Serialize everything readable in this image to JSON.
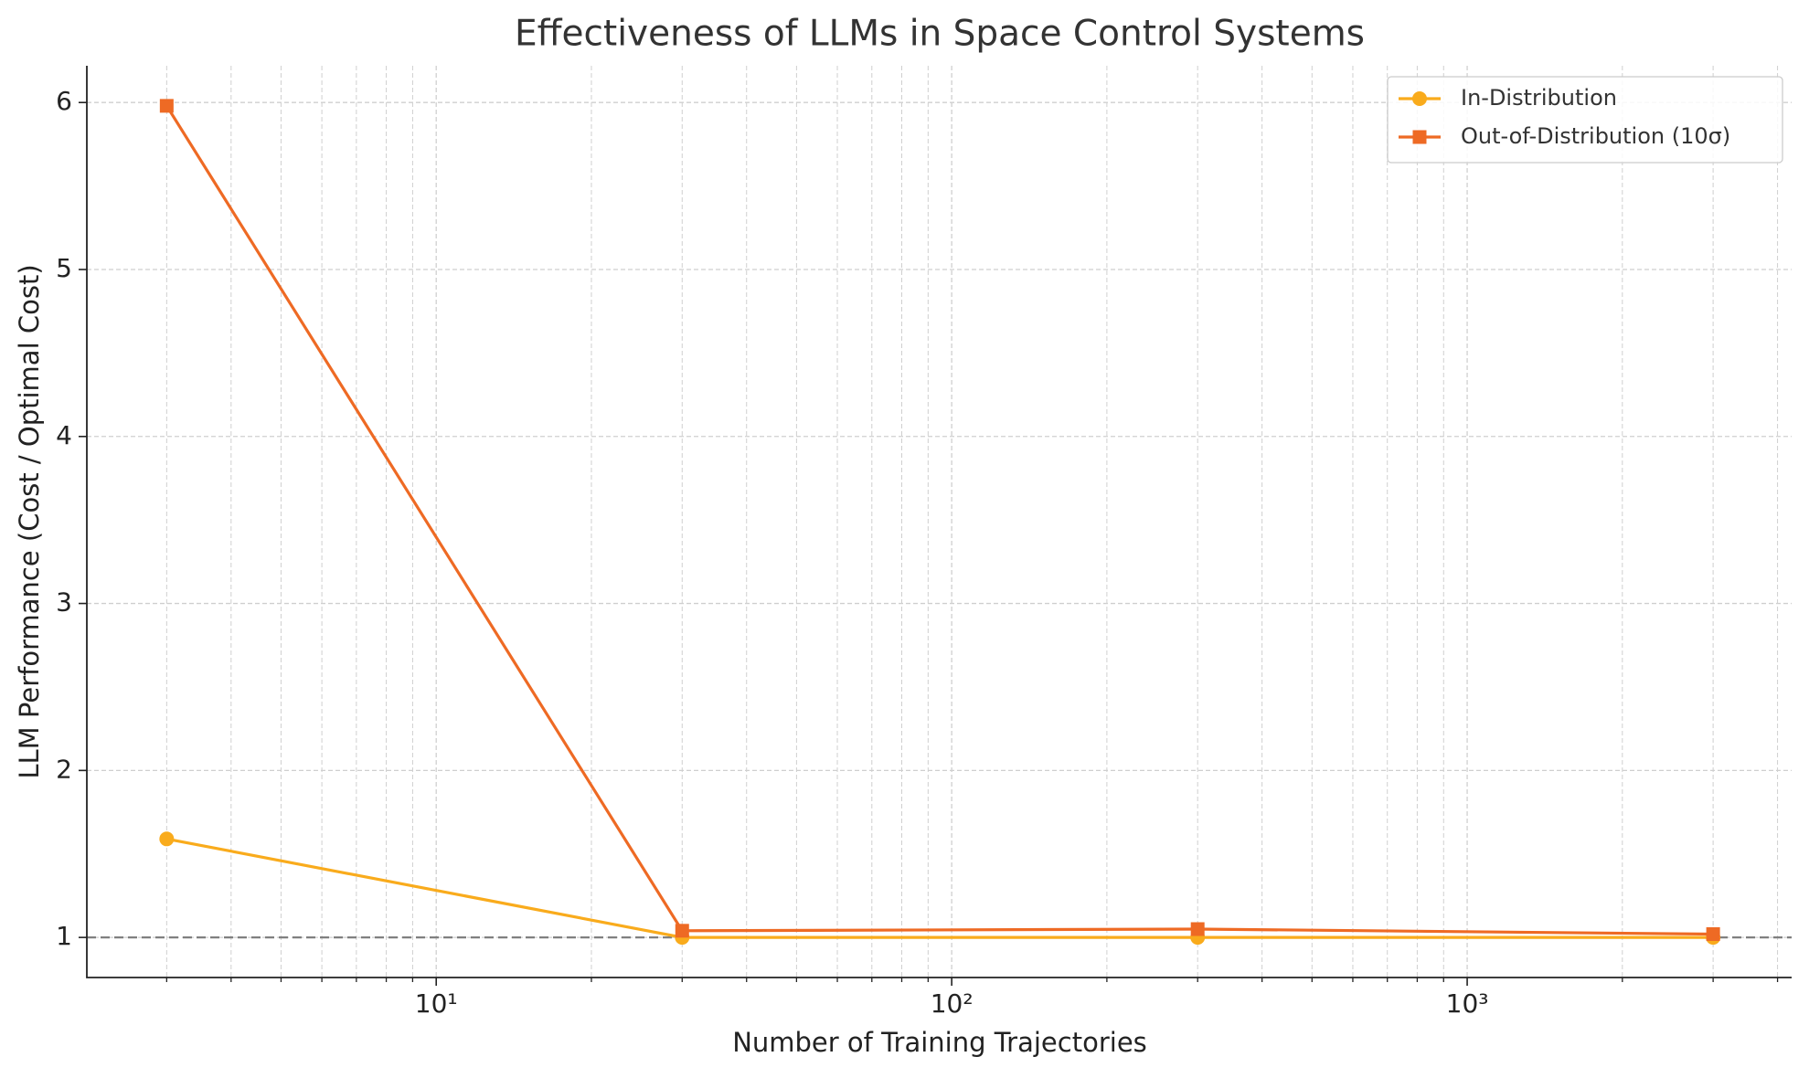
{
  "chart_data": {
    "type": "line",
    "title": "Effectiveness of LLMs in Space Control Systems",
    "x_label": "Number of Training Trajectories",
    "y_label": "LLM Performance (Cost / Optimal Cost)",
    "x": [
      3,
      30,
      300,
      3000
    ],
    "x_scale": "log",
    "series": [
      {
        "name": "In-Distribution",
        "color": "#f9ab1c",
        "marker": "circle",
        "values": [
          1.59,
          1.0,
          1.0,
          1.0
        ]
      },
      {
        "name": "Out-of-Distribution (10σ)",
        "color": "#ee6a24",
        "marker": "square",
        "values": [
          5.98,
          1.04,
          1.05,
          1.02
        ]
      }
    ],
    "reference_line": {
      "value": 1,
      "color": "#808080"
    },
    "xlim": [
      2.1,
      4260
    ],
    "ylim": [
      0.76,
      6.22
    ],
    "xticks": [
      {
        "value": 10,
        "label": "10¹"
      },
      {
        "value": 100,
        "label": "10²"
      },
      {
        "value": 1000,
        "label": "10³"
      }
    ],
    "xminorticks": [
      3,
      4,
      5,
      6,
      7,
      8,
      9,
      20,
      30,
      40,
      50,
      60,
      70,
      80,
      90,
      200,
      300,
      400,
      500,
      600,
      700,
      800,
      900,
      2000,
      3000,
      4000
    ],
    "yticks": [
      1,
      2,
      3,
      4,
      5,
      6
    ],
    "grid": true,
    "legend": "upper right"
  }
}
